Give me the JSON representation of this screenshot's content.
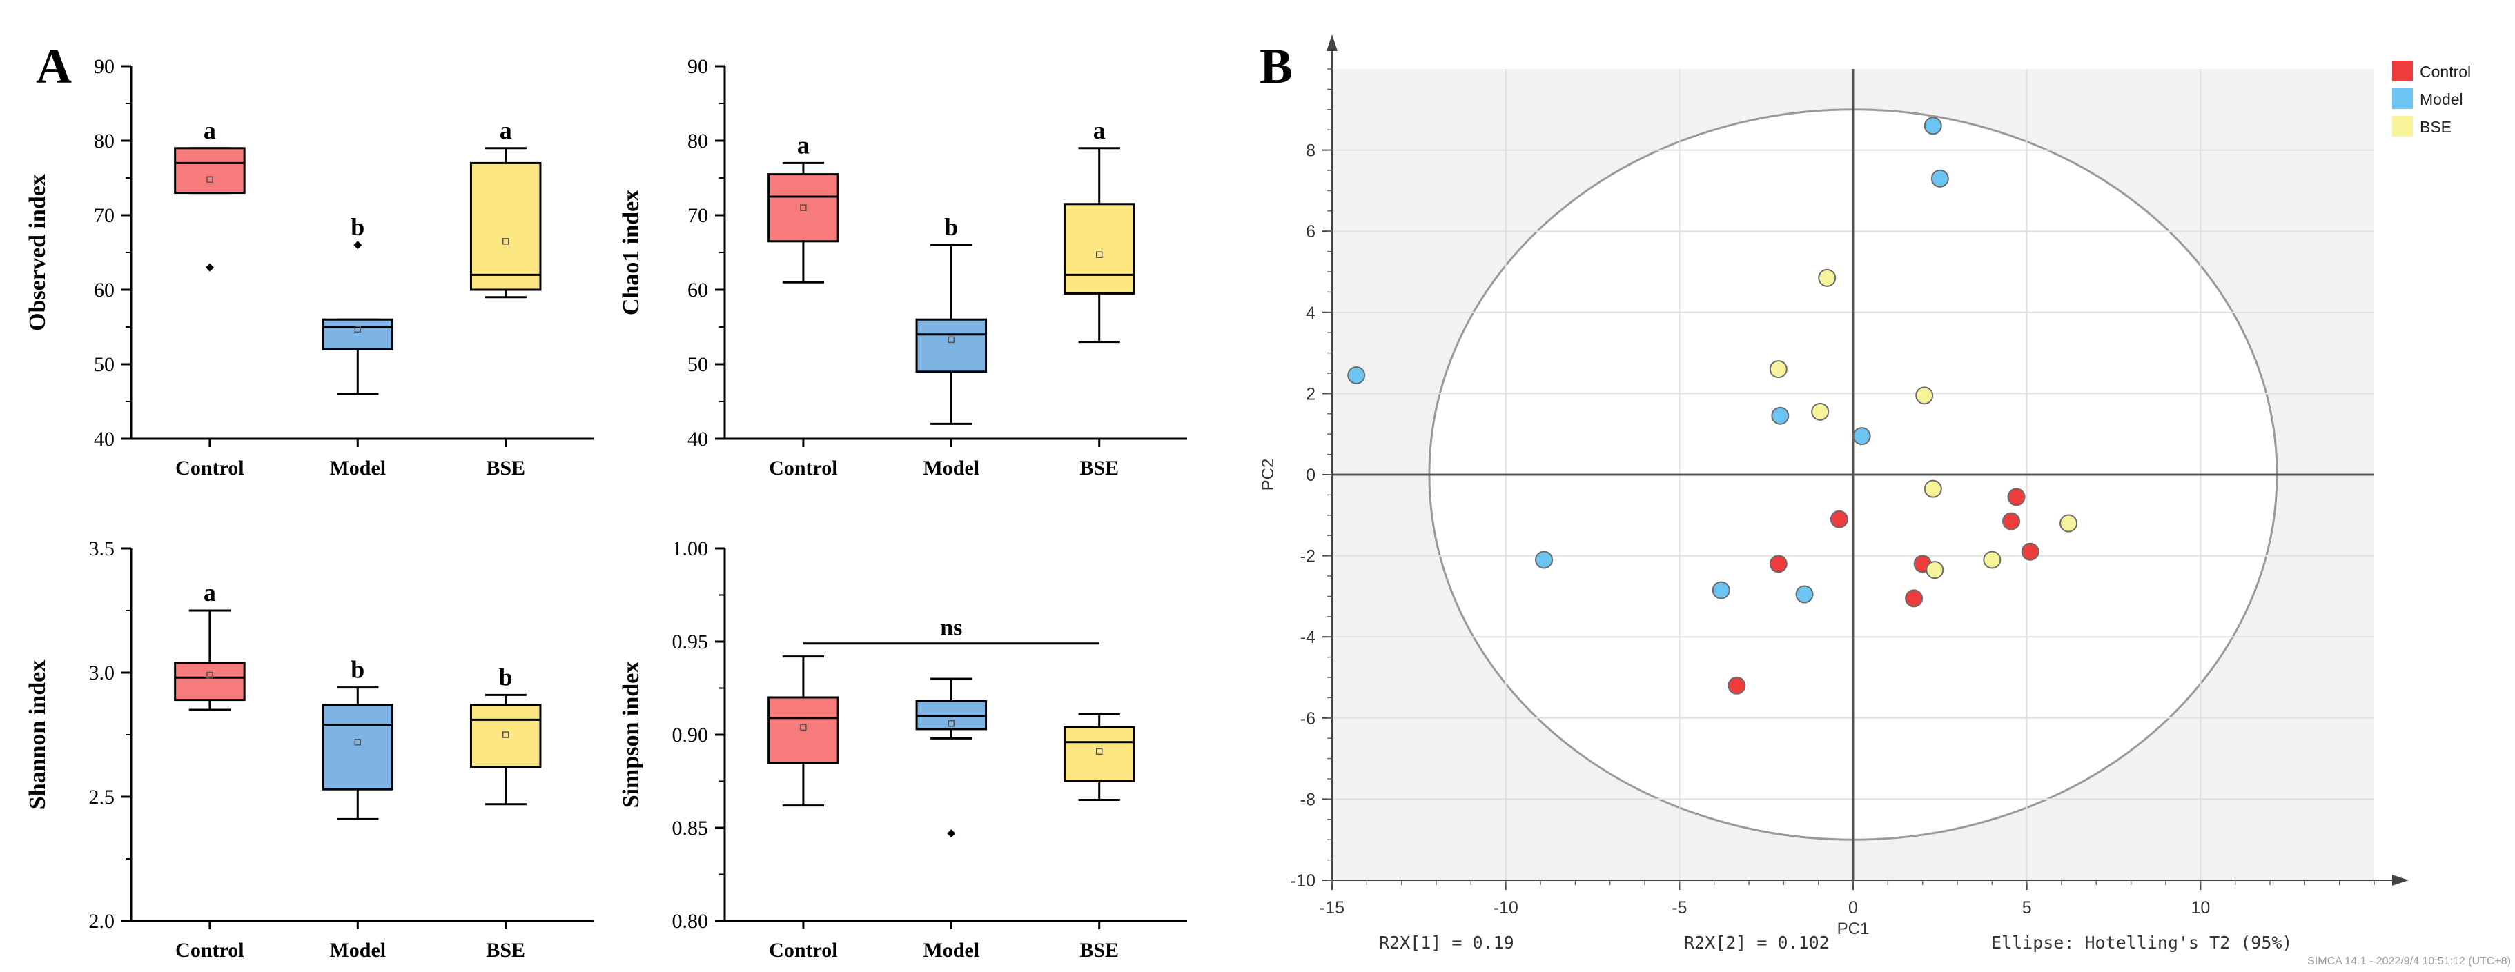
{
  "panel_labels": {
    "a": "A",
    "b": "B"
  },
  "colors": {
    "Control": "#f77b7b",
    "Model": "#7eb4e3",
    "BSE": "#fbe681",
    "pca_Control": "#ee3b3b",
    "pca_Model": "#6cc4f2",
    "pca_BSE": "#f7f39a"
  },
  "chart_data": [
    {
      "type": "box",
      "ylabel": "Observed index",
      "categories": [
        "Control",
        "Model",
        "BSE"
      ],
      "ylim": [
        40,
        90
      ],
      "yticks": [
        40,
        50,
        60,
        70,
        80,
        90
      ],
      "yticklabels": [
        "40",
        "50",
        "60",
        "70",
        "80",
        "90"
      ],
      "boxes": [
        {
          "group": "Control",
          "q1": 73,
          "median": 77,
          "q3": 79,
          "wlow": 73,
          "whigh": 79,
          "mean": 74.8,
          "outliers": [
            63
          ],
          "sig": "a"
        },
        {
          "group": "Model",
          "q1": 52,
          "median": 55,
          "q3": 56,
          "wlow": 46,
          "whigh": 56,
          "mean": 54.7,
          "outliers": [
            66
          ],
          "sig": "b"
        },
        {
          "group": "BSE",
          "q1": 60,
          "median": 62,
          "q3": 77,
          "wlow": 59,
          "whigh": 79,
          "mean": 66.5,
          "outliers": [],
          "sig": "a"
        }
      ]
    },
    {
      "type": "box",
      "ylabel": "Chao1 index",
      "categories": [
        "Control",
        "Model",
        "BSE"
      ],
      "ylim": [
        40,
        90
      ],
      "yticks": [
        40,
        50,
        60,
        70,
        80,
        90
      ],
      "yticklabels": [
        "40",
        "50",
        "60",
        "70",
        "80",
        "90"
      ],
      "boxes": [
        {
          "group": "Control",
          "q1": 66.5,
          "median": 72.5,
          "q3": 75.5,
          "wlow": 61,
          "whigh": 77,
          "mean": 71,
          "outliers": [],
          "sig": "a"
        },
        {
          "group": "Model",
          "q1": 49,
          "median": 54,
          "q3": 56,
          "wlow": 42,
          "whigh": 66,
          "mean": 53.3,
          "outliers": [],
          "sig": "b"
        },
        {
          "group": "BSE",
          "q1": 59.5,
          "median": 62,
          "q3": 71.5,
          "wlow": 53,
          "whigh": 79,
          "mean": 64.7,
          "outliers": [],
          "sig": "a"
        }
      ]
    },
    {
      "type": "box",
      "ylabel": "Shannon index",
      "categories": [
        "Control",
        "Model",
        "BSE"
      ],
      "ylim": [
        2.0,
        3.5
      ],
      "yticks": [
        2.0,
        2.5,
        3.0,
        3.5
      ],
      "yticklabels": [
        "2.0",
        "2.5",
        "3.0",
        "3.5"
      ],
      "boxes": [
        {
          "group": "Control",
          "q1": 2.89,
          "median": 2.98,
          "q3": 3.04,
          "wlow": 2.85,
          "whigh": 3.25,
          "mean": 2.99,
          "outliers": [],
          "sig": "a"
        },
        {
          "group": "Model",
          "q1": 2.53,
          "median": 2.79,
          "q3": 2.87,
          "wlow": 2.41,
          "whigh": 2.94,
          "mean": 2.72,
          "outliers": [],
          "sig": "b"
        },
        {
          "group": "BSE",
          "q1": 2.62,
          "median": 2.81,
          "q3": 2.87,
          "wlow": 2.47,
          "whigh": 2.91,
          "mean": 2.75,
          "outliers": [],
          "sig": "b"
        }
      ]
    },
    {
      "type": "box",
      "ylabel": "Simpson index",
      "categories": [
        "Control",
        "Model",
        "BSE"
      ],
      "ylim": [
        0.8,
        1.0
      ],
      "yticks": [
        0.8,
        0.85,
        0.9,
        0.95,
        1.0
      ],
      "yticklabels": [
        "0.80",
        "0.85",
        "0.90",
        "0.95",
        "1.00"
      ],
      "bracket": {
        "label": "ns",
        "y": 0.949
      },
      "boxes": [
        {
          "group": "Control",
          "q1": 0.885,
          "median": 0.909,
          "q3": 0.92,
          "wlow": 0.862,
          "whigh": 0.942,
          "mean": 0.904,
          "outliers": [],
          "sig": ""
        },
        {
          "group": "Model",
          "q1": 0.903,
          "median": 0.91,
          "q3": 0.918,
          "wlow": 0.898,
          "whigh": 0.93,
          "mean": 0.906,
          "outliers": [
            0.847
          ],
          "sig": ""
        },
        {
          "group": "BSE",
          "q1": 0.875,
          "median": 0.896,
          "q3": 0.904,
          "wlow": 0.865,
          "whigh": 0.911,
          "mean": 0.891,
          "outliers": [],
          "sig": ""
        }
      ]
    },
    {
      "type": "scatter",
      "title": "",
      "xlabel": "PC1",
      "ylabel": "PC2",
      "xlim": [
        -15,
        15
      ],
      "ylim": [
        -10,
        10
      ],
      "xticks": [
        -15,
        -10,
        -5,
        0,
        5,
        10
      ],
      "yticks": [
        -10,
        -8,
        -6,
        -4,
        -2,
        0,
        2,
        4,
        6,
        8
      ],
      "legend": {
        "position": "top-right",
        "entries": [
          "Control",
          "Model",
          "BSE"
        ]
      },
      "ellipse": {
        "rx": 12.2,
        "ry": 9.0
      },
      "series": [
        {
          "name": "Control",
          "points": [
            [
              4.7,
              -0.55
            ],
            [
              4.55,
              -1.15
            ],
            [
              5.1,
              -1.9
            ],
            [
              2.0,
              -2.2
            ],
            [
              -2.15,
              -2.2
            ],
            [
              -0.4,
              -1.1
            ],
            [
              1.75,
              -3.05
            ],
            [
              -3.35,
              -5.2
            ]
          ]
        },
        {
          "name": "Model",
          "points": [
            [
              2.3,
              8.6
            ],
            [
              2.5,
              7.3
            ],
            [
              -14.3,
              2.45
            ],
            [
              -2.1,
              1.45
            ],
            [
              0.25,
              0.95
            ],
            [
              -8.9,
              -2.1
            ],
            [
              -3.8,
              -2.85
            ],
            [
              -1.4,
              -2.95
            ]
          ]
        },
        {
          "name": "BSE",
          "points": [
            [
              -0.75,
              4.85
            ],
            [
              -2.15,
              2.6
            ],
            [
              -0.95,
              1.55
            ],
            [
              2.05,
              1.95
            ],
            [
              2.3,
              -0.35
            ],
            [
              6.2,
              -1.2
            ],
            [
              4.0,
              -2.1
            ],
            [
              2.35,
              -2.35
            ]
          ]
        }
      ],
      "footer": {
        "r2x1": "R2X[1] = 0.19",
        "r2x2": "R2X[2] = 0.102",
        "ellipse_note": "Ellipse: Hotelling's T2 (95%)",
        "software": "SIMCA 14.1 - 2022/9/4 10:51:12 (UTC+8)"
      }
    }
  ]
}
